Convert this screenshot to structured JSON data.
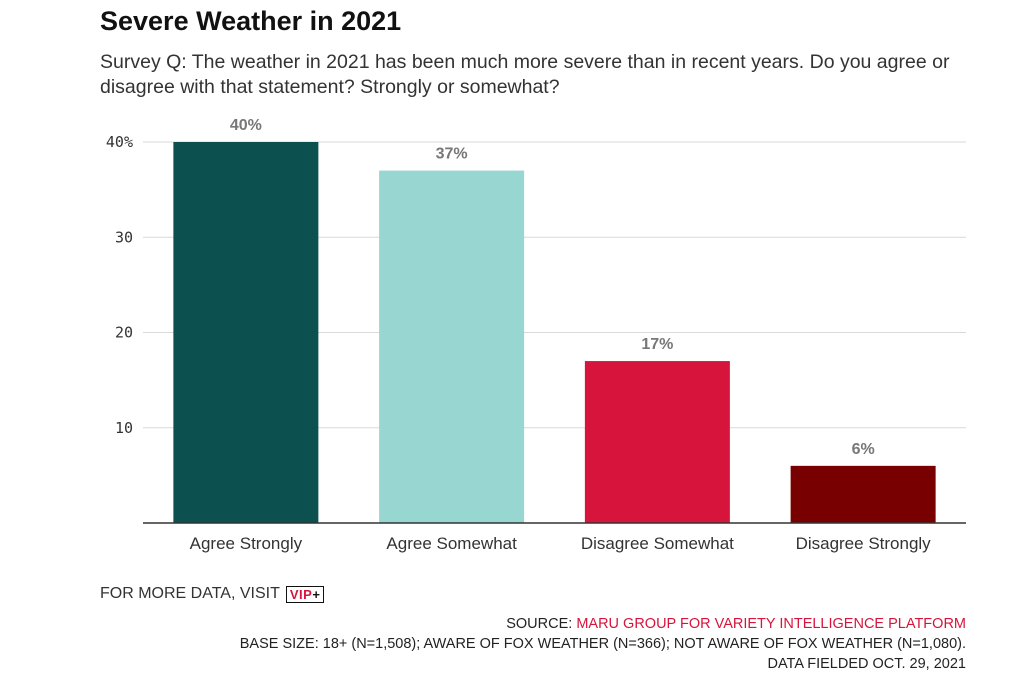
{
  "header": {
    "title": "Severe Weather in 2021",
    "subtitle": "Survey Q: The weather in 2021 has been much more severe than in recent years. Do you agree or disagree with that statement? Strongly or somewhat?"
  },
  "chart_data": {
    "type": "bar",
    "title": "Severe Weather in 2021",
    "subtitle": "Survey Q: The weather in 2021 has been much more severe than in recent years. Do you agree or disagree with that statement? Strongly or somewhat?",
    "categories": [
      "Agree Strongly",
      "Agree Somewhat",
      "Disagree Somewhat",
      "Disagree Strongly"
    ],
    "values": [
      40,
      37,
      17,
      6
    ],
    "data_labels": [
      "40%",
      "37%",
      "17%",
      "6%"
    ],
    "colors": [
      "#0c5050",
      "#98d6d2",
      "#d7143c",
      "#780000"
    ],
    "y_ticks": [
      10,
      20,
      30,
      40
    ],
    "y_tick_labels": [
      "10",
      "20",
      "30",
      "40%"
    ],
    "ylim": [
      0,
      40
    ],
    "grid": true,
    "xlabel": "",
    "ylabel": ""
  },
  "footer": {
    "more_data_text": "FOR MORE DATA, VISIT",
    "vip_text": "VIP",
    "vip_plus": "+",
    "source_prefix": "SOURCE: ",
    "source_org": "MARU GROUP FOR VARIETY INTELLIGENCE PLATFORM",
    "base_size": "BASE SIZE: 18+ (N=1,508); AWARE OF FOX WEATHER (N=366); NOT AWARE OF FOX WEATHER (N=1,080).",
    "fielded": "DATA FIELDED OCT. 29, 2021"
  },
  "colors": {
    "accent_red": "#d7143c",
    "grid": "#d9d9d9",
    "axis": "#333333"
  }
}
